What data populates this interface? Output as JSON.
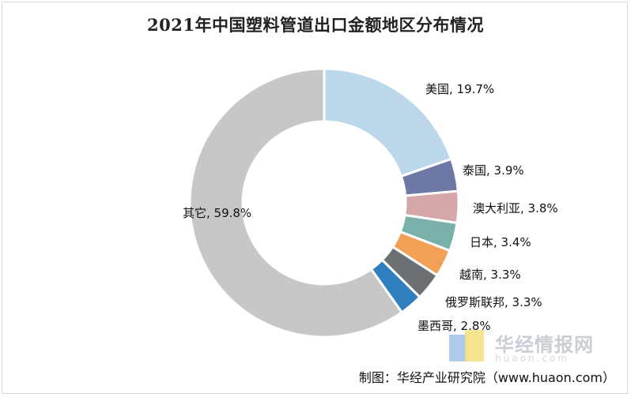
{
  "chart_data": {
    "type": "pie",
    "title": "2021年中国塑料管道出口金额地区分布情况",
    "slices": [
      {
        "label": "美国",
        "value": 19.7,
        "text": "美国, 19.7%",
        "color": "#bcd6ea"
      },
      {
        "label": "泰国",
        "value": 3.9,
        "text": "泰国, 3.9%",
        "color": "#6e78a6"
      },
      {
        "label": "澳大利亚",
        "value": 3.8,
        "text": "澳大利亚, 3.8%",
        "color": "#d5a7a9"
      },
      {
        "label": "日本",
        "value": 3.4,
        "text": "日本, 3.4%",
        "color": "#79b0aa"
      },
      {
        "label": "越南",
        "value": 3.3,
        "text": "越南, 3.3%",
        "color": "#f1a055"
      },
      {
        "label": "俄罗斯联邦",
        "value": 3.3,
        "text": "俄罗斯联邦, 3.3%",
        "color": "#6b7075"
      },
      {
        "label": "墨西哥",
        "value": 2.8,
        "text": "墨西哥, 2.8%",
        "color": "#2f7fbf"
      },
      {
        "label": "其它",
        "value": 59.8,
        "text": "其它, 59.8%",
        "color": "#c6c7c7"
      }
    ]
  },
  "watermark": {
    "name": "华经情报网",
    "url": "huaon.com"
  },
  "source": "制图：华经产业研究院（www.huaon.com）"
}
